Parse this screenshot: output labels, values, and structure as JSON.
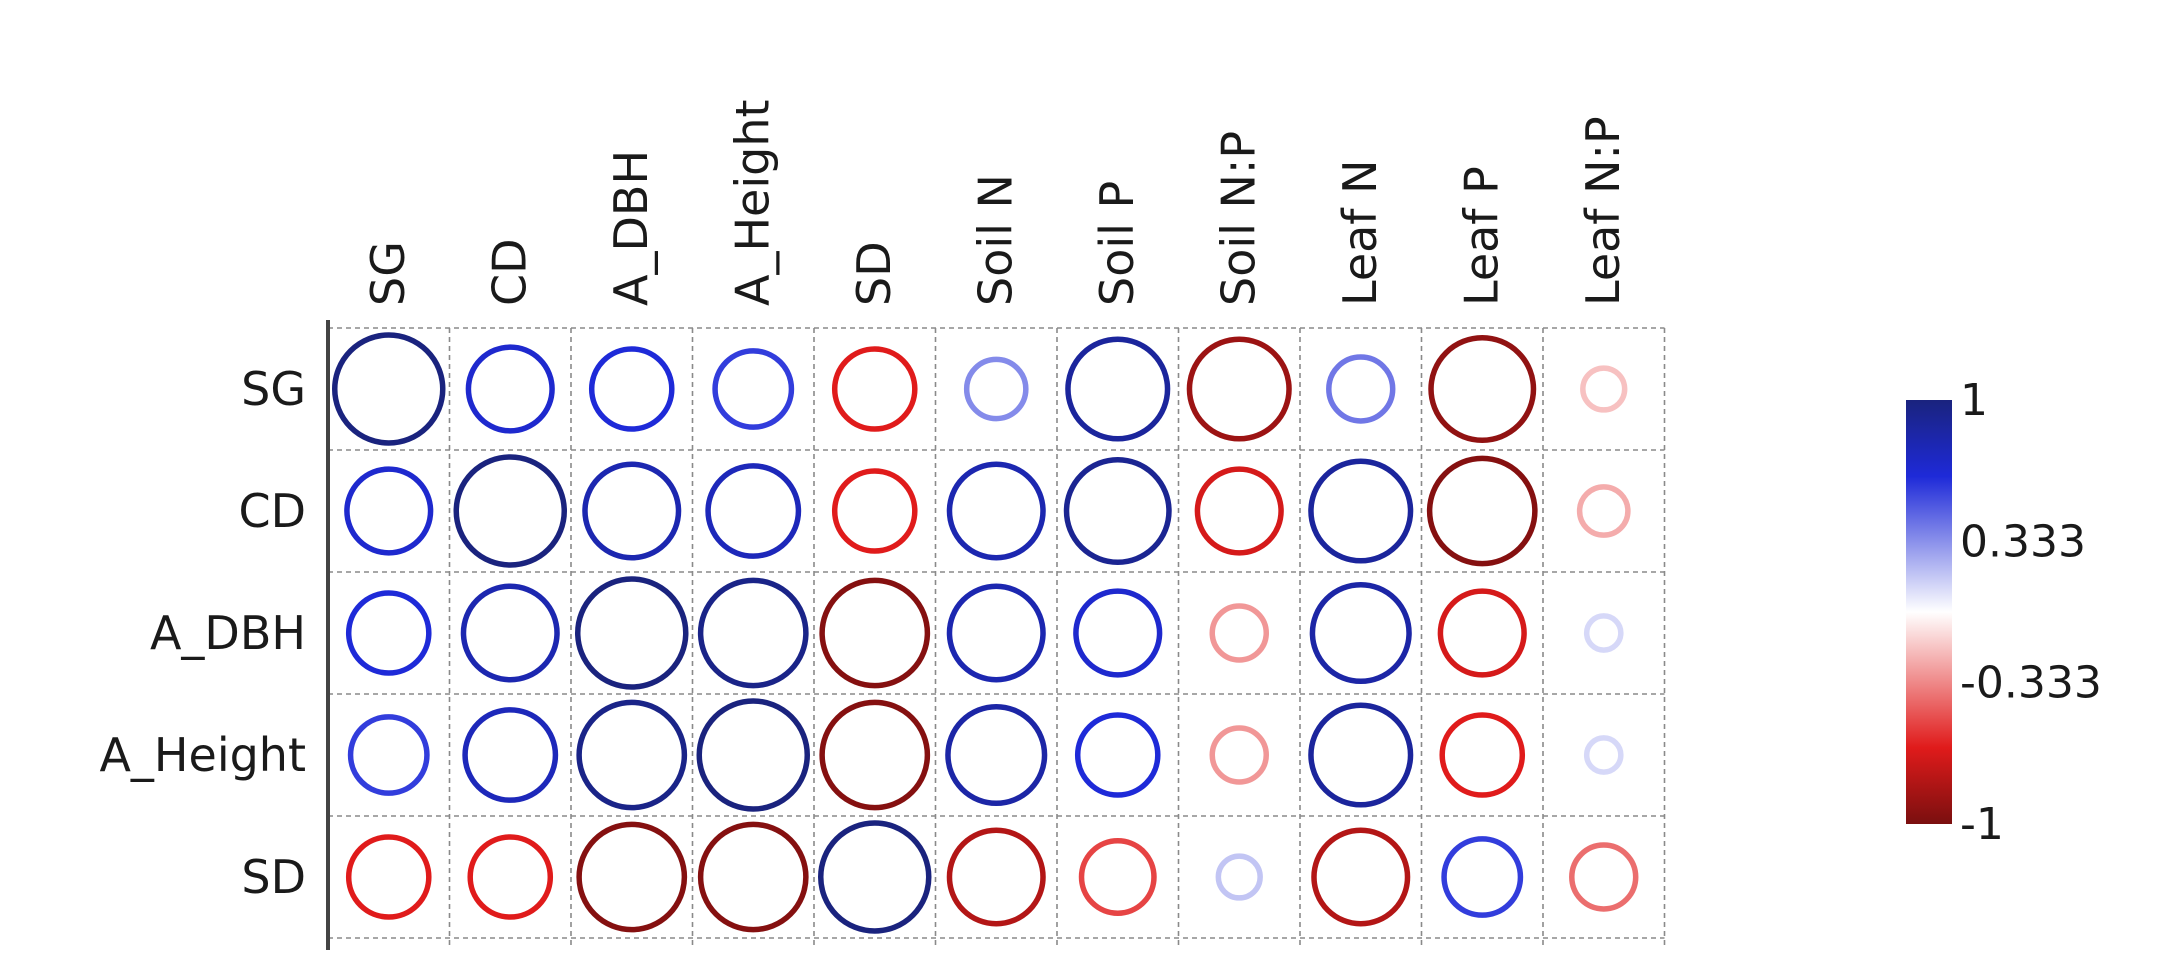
{
  "chart_data": {
    "type": "heatmap",
    "title": "",
    "columns": [
      "SG",
      "CD",
      "A_DBH",
      "A_Height",
      "SD",
      "Soil N",
      "Soil P",
      "Soil N:P",
      "Leaf N",
      "Leaf P",
      "Leaf N:P"
    ],
    "rows": [
      "SG",
      "CD",
      "A_DBH",
      "A_Height",
      "SD"
    ],
    "values": [
      [
        1.0,
        0.6,
        0.55,
        0.5,
        -0.55,
        0.3,
        0.85,
        -0.85,
        0.35,
        -0.9,
        -0.15
      ],
      [
        0.6,
        1.0,
        0.75,
        0.7,
        -0.55,
        0.75,
        0.9,
        -0.6,
        0.85,
        -0.95,
        -0.2
      ],
      [
        0.55,
        0.75,
        1.0,
        0.95,
        -0.95,
        0.75,
        0.6,
        -0.25,
        0.8,
        -0.6,
        0.1
      ],
      [
        0.5,
        0.7,
        0.95,
        1.0,
        -0.95,
        0.8,
        0.55,
        -0.25,
        0.85,
        -0.55,
        0.1
      ],
      [
        -0.55,
        -0.55,
        -0.95,
        -0.95,
        1.0,
        -0.75,
        -0.45,
        0.15,
        -0.75,
        0.5,
        -0.35
      ]
    ],
    "color_scale": {
      "min": -1,
      "max": 1,
      "tick_labels": [
        "1",
        "0.333",
        "-0.333",
        "-1"
      ],
      "tick_values": [
        1,
        0.333,
        -0.333,
        -1
      ],
      "colors": {
        "pos_strong": "#1a237e",
        "pos_mid": "#1e2ad8",
        "neutral": "#ffffff",
        "neg_mid": "#e01b1b",
        "neg_strong": "#7a0f0f"
      }
    },
    "legend_position": "right",
    "grid": "dashed"
  }
}
